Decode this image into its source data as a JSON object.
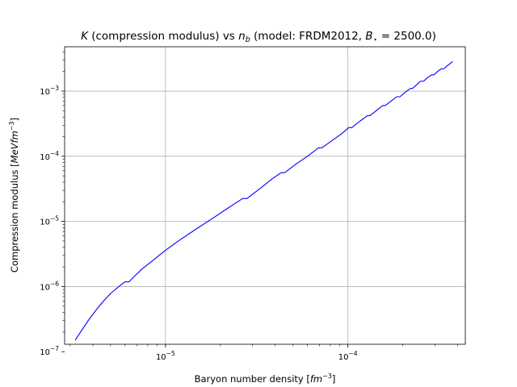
{
  "chart_data": {
    "type": "line",
    "title": "K (compression modulus) vs n_b (model: FRDM2012, B⋆ = 2500.0)",
    "title_parts": {
      "k": "K",
      "text1": " (compression modulus) vs ",
      "n": "n",
      "b": "b",
      "text2": " (model: FRDM2012, ",
      "B": "B",
      "star": "⋆",
      "eq": " = 2500.0)"
    },
    "xlabel": "Baryon number density [fm⁻³]",
    "xlabel_parts": {
      "text": "Baryon number density [",
      "fm": "fm",
      "exp": "−3",
      "close": "]"
    },
    "ylabel": "Compression modulus [MeV fm⁻³]",
    "ylabel_parts": {
      "text": "Compression modulus [",
      "mev": "MeVfm",
      "exp": "−3",
      "close": "]"
    },
    "x_scale": "log",
    "y_scale": "log",
    "xlim": [
      2.8e-06,
      0.00044
    ],
    "ylim": [
      1.3e-07,
      0.0048
    ],
    "grid": true,
    "x_ticks": [
      {
        "value": 1e-05,
        "base": "10",
        "exp": "−5"
      },
      {
        "value": 0.0001,
        "base": "10",
        "exp": "−4"
      }
    ],
    "y_ticks": [
      {
        "value": 1e-07,
        "base": "10",
        "exp": "−7"
      },
      {
        "value": 1e-06,
        "base": "10",
        "exp": "−6"
      },
      {
        "value": 1e-05,
        "base": "10",
        "exp": "−5"
      },
      {
        "value": 0.0001,
        "base": "10",
        "exp": "−4"
      },
      {
        "value": 0.001,
        "base": "10",
        "exp": "−3"
      }
    ],
    "series": [
      {
        "color": "#0000ff",
        "x": [
          3.2e-06,
          3.5e-06,
          3.8e-06,
          4.2e-06,
          4.6e-06,
          5e-06,
          5.5e-06,
          6e-06,
          6.3e-06,
          6.6e-06,
          7.5e-06,
          8.5e-06,
          1e-05,
          1.2e-05,
          1.5e-05,
          1.8e-05,
          2.2e-05,
          2.65e-05,
          2.8e-05,
          3.3e-05,
          3.8e-05,
          4.3e-05,
          4.5e-05,
          5.2e-05,
          6e-05,
          6.9e-05,
          7.2e-05,
          8.2e-05,
          9.2e-05,
          0.000101,
          0.000105,
          0.000117,
          0.000128,
          0.000132,
          0.000143,
          0.000155,
          0.00016,
          0.000172,
          0.000185,
          0.000193,
          0.000205,
          0.00022,
          0.000226,
          0.000238,
          0.00025,
          0.00026,
          0.000272,
          0.000288,
          0.000296,
          0.00031,
          0.000325,
          0.000335,
          0.00035,
          0.00036,
          0.000375
        ],
        "y": [
          1.5e-07,
          2.2e-07,
          3.1e-07,
          4.5e-07,
          6.1e-07,
          7.8e-07,
          9.8e-07,
          1.18e-06,
          1.18e-06,
          1.35e-06,
          1.9e-06,
          2.5e-06,
          3.6e-06,
          5.2e-06,
          7.9e-06,
          1.1e-05,
          1.6e-05,
          2.25e-05,
          2.25e-05,
          3.2e-05,
          4.4e-05,
          5.6e-05,
          5.6e-05,
          7.6e-05,
          0.0001,
          0.000135,
          0.000135,
          0.000175,
          0.00022,
          0.000275,
          0.000275,
          0.00035,
          0.00042,
          0.00042,
          0.0005,
          0.0006,
          0.0006,
          0.0007,
          0.00082,
          0.00082,
          0.00095,
          0.0011,
          0.0011,
          0.00125,
          0.00142,
          0.00142,
          0.0016,
          0.00178,
          0.00178,
          0.002,
          0.0022,
          0.0022,
          0.00245,
          0.0026,
          0.00285
        ]
      }
    ]
  }
}
